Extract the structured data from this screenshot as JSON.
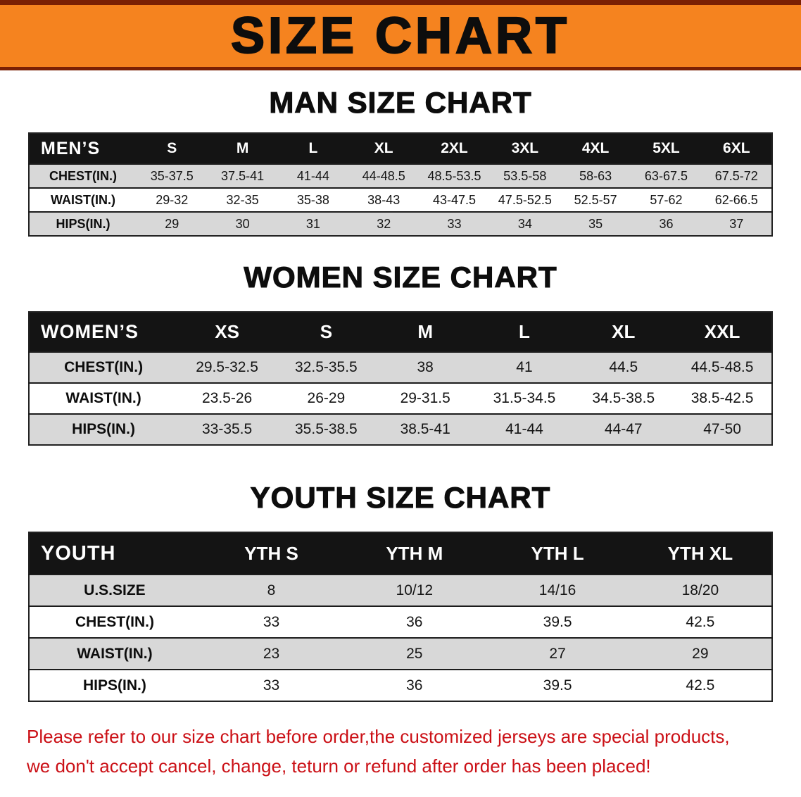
{
  "banner": {
    "title": "SIZE CHART"
  },
  "sections": [
    {
      "heading": "MAN SIZE CHART",
      "table": {
        "header": [
          "MEN’S",
          "S",
          "M",
          "L",
          "XL",
          "2XL",
          "3XL",
          "4XL",
          "5XL",
          "6XL"
        ],
        "rows": [
          [
            "CHEST(IN.)",
            "35-37.5",
            "37.5-41",
            "41-44",
            "44-48.5",
            "48.5-53.5",
            "53.5-58",
            "58-63",
            "63-67.5",
            "67.5-72"
          ],
          [
            "WAIST(IN.)",
            "29-32",
            "32-35",
            "35-38",
            "38-43",
            "43-47.5",
            "47.5-52.5",
            "52.5-57",
            "57-62",
            "62-66.5"
          ],
          [
            "HIPS(IN.)",
            "29",
            "30",
            "31",
            "32",
            "33",
            "34",
            "35",
            "36",
            "37"
          ]
        ]
      }
    },
    {
      "heading": "WOMEN SIZE CHART",
      "table": {
        "header": [
          "WOMEN’S",
          "XS",
          "S",
          "M",
          "L",
          "XL",
          "XXL"
        ],
        "rows": [
          [
            "CHEST(IN.)",
            "29.5-32.5",
            "32.5-35.5",
            "38",
            "41",
            "44.5",
            "44.5-48.5"
          ],
          [
            "WAIST(IN.)",
            "23.5-26",
            "26-29",
            "29-31.5",
            "31.5-34.5",
            "34.5-38.5",
            "38.5-42.5"
          ],
          [
            "HIPS(IN.)",
            "33-35.5",
            "35.5-38.5",
            "38.5-41",
            "41-44",
            "44-47",
            "47-50"
          ]
        ]
      }
    },
    {
      "heading": "YOUTH SIZE CHART",
      "table": {
        "header": [
          "YOUTH",
          "YTH S",
          "YTH M",
          "YTH L",
          "YTH XL"
        ],
        "rows": [
          [
            "U.S.SIZE",
            "8",
            "10/12",
            "14/16",
            "18/20"
          ],
          [
            "CHEST(IN.)",
            "33",
            "36",
            "39.5",
            "42.5"
          ],
          [
            "WAIST(IN.)",
            "23",
            "25",
            "27",
            "29"
          ],
          [
            "HIPS(IN.)",
            "33",
            "36",
            "39.5",
            "42.5"
          ]
        ]
      }
    }
  ],
  "footer": {
    "line1": "Please refer to our size chart before order,the customized jerseys are special products,",
    "line2": "we don't accept cancel, change, teturn or refund after order has been placed!"
  },
  "colors": {
    "banner_orange": "#f5831f",
    "banner_edge": "#7a2004",
    "header_black": "#141414",
    "row_gray": "#d8d8d8",
    "footer_red": "#cb1016"
  }
}
